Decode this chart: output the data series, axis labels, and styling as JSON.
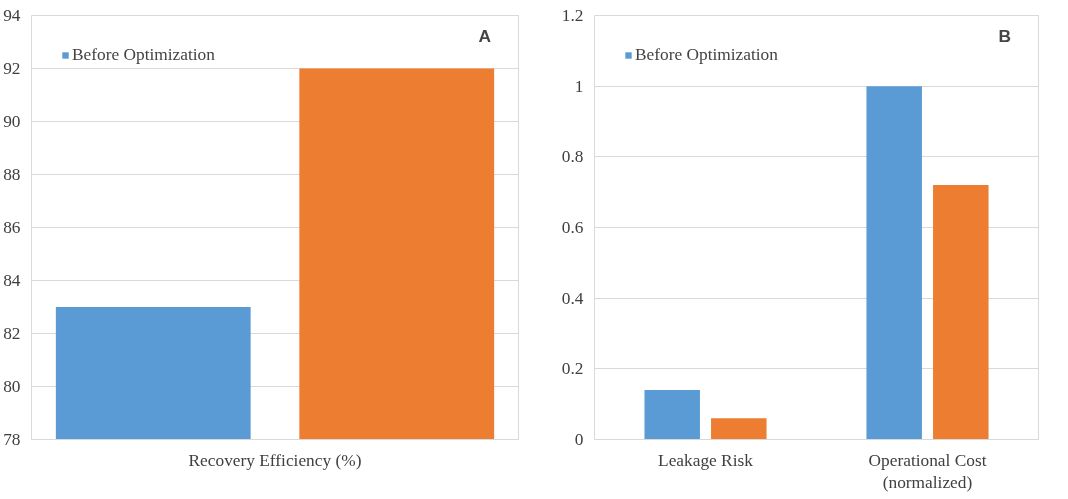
{
  "chart_data": [
    {
      "type": "bar",
      "categories": [
        "Recovery Efficiency (%)"
      ],
      "series": [
        {
          "name": "Before Optimization",
          "color": "#5b9bd5",
          "values": [
            83
          ]
        },
        {
          "color": "#ed7d31",
          "values": [
            92
          ]
        }
      ],
      "ylim": [
        78,
        94
      ],
      "yticks": [
        78,
        80,
        82,
        84,
        86,
        88,
        90,
        92,
        94
      ],
      "grid": "y",
      "legend": "top left",
      "annotations": [
        "A"
      ]
    },
    {
      "type": "bar",
      "categories": [
        "Leakage Risk",
        "Operational Cost\n(normalized)"
      ],
      "series": [
        {
          "name": "Before Optimization",
          "color": "#5b9bd5",
          "values": [
            0.14,
            1.0
          ]
        },
        {
          "color": "#ed7d31",
          "values": [
            0.06,
            0.72
          ]
        }
      ],
      "ylim": [
        0,
        1.2
      ],
      "yticks": [
        0,
        0.2,
        0.4,
        0.6,
        0.8,
        1,
        1.2
      ],
      "grid": "y",
      "legend": "top left",
      "annotations": [
        "B"
      ]
    }
  ]
}
